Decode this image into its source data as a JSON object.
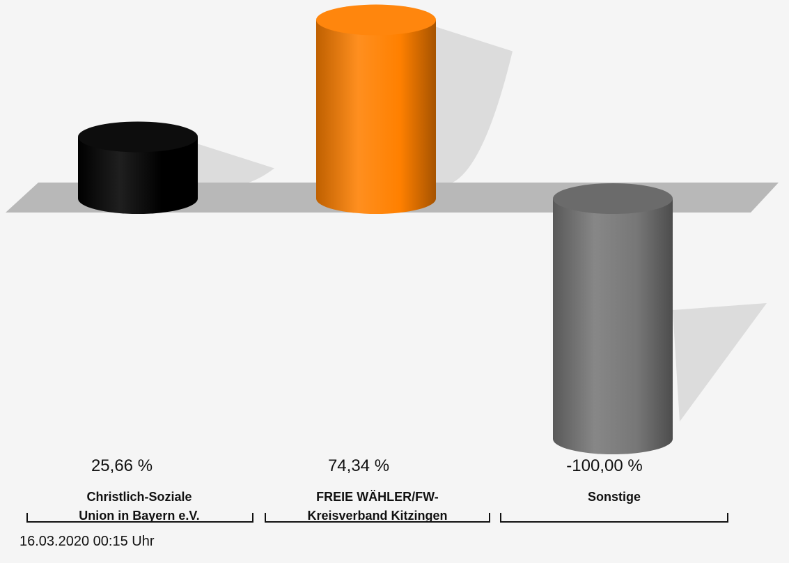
{
  "chart_data": {
    "type": "bar",
    "categories": [
      "Christlich-Soziale Union in Bayern e.V.",
      "FREIE WÄHLER/FW-Kreisverband Kitzingen",
      "Sonstige"
    ],
    "label_lines": [
      [
        "Christlich-Soziale",
        "Union in Bayern e.V."
      ],
      [
        "FREIE WÄHLER/FW-",
        "Kreisverband Kitzingen"
      ],
      [
        "Sonstige"
      ]
    ],
    "values": [
      25.66,
      74.34,
      -100.0
    ],
    "value_labels": [
      "25,66 %",
      "74,34 %",
      "-100,00 %"
    ],
    "colors": [
      "#000000",
      "#ff8000",
      "#777777"
    ],
    "ylim": [
      -100,
      100
    ],
    "title": "",
    "xlabel": "",
    "ylabel": ""
  },
  "timestamp": "16.03.2020 00:15 Uhr"
}
